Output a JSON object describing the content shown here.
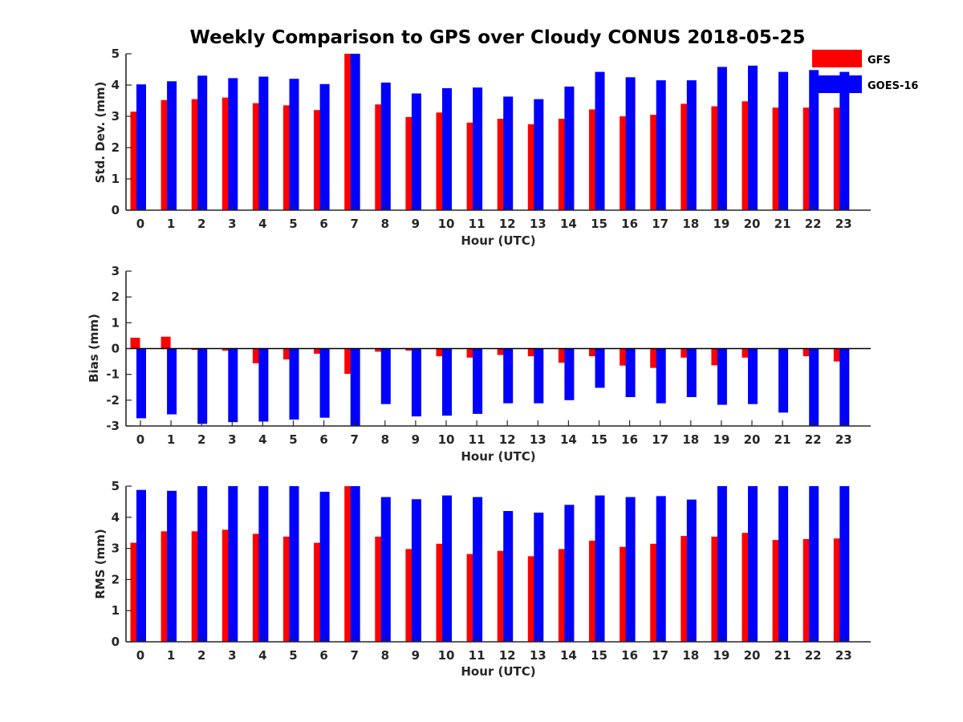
{
  "chart_data": [
    {
      "type": "bar",
      "title": "Weekly Comparison to GPS over Cloudy CONUS 2018-05-25",
      "xlabel": "Hour (UTC)",
      "ylabel": "Std. Dev. (mm)",
      "ylim": [
        0,
        5
      ],
      "yticks": [
        0,
        1,
        2,
        3,
        4,
        5
      ],
      "legend": "top-right",
      "categories": [
        "0",
        "1",
        "2",
        "3",
        "4",
        "5",
        "6",
        "7",
        "8",
        "9",
        "10",
        "11",
        "12",
        "13",
        "14",
        "15",
        "16",
        "17",
        "18",
        "19",
        "20",
        "21",
        "22",
        "23"
      ],
      "series": [
        {
          "name": "GFS",
          "color": "#ff0000",
          "values": [
            3.15,
            3.52,
            3.55,
            3.6,
            3.42,
            3.35,
            3.2,
            5.0,
            3.38,
            2.98,
            3.12,
            2.8,
            2.92,
            2.75,
            2.92,
            3.22,
            3.0,
            3.05,
            3.4,
            3.32,
            3.48,
            3.28,
            3.28,
            3.28
          ]
        },
        {
          "name": "GOES-16",
          "color": "#0000ff",
          "values": [
            4.02,
            4.12,
            4.3,
            4.22,
            4.27,
            4.2,
            4.03,
            5.0,
            4.08,
            3.73,
            3.9,
            3.92,
            3.63,
            3.55,
            3.95,
            4.42,
            4.25,
            4.15,
            4.15,
            4.58,
            4.62,
            4.42,
            4.48,
            4.42
          ]
        }
      ]
    },
    {
      "type": "bar",
      "title": "",
      "xlabel": "Hour (UTC)",
      "ylabel": "Bias (mm)",
      "ylim": [
        -3,
        3
      ],
      "yticks": [
        -3,
        -2,
        -1,
        0,
        1,
        2,
        3
      ],
      "zero_line": true,
      "categories": [
        "0",
        "1",
        "2",
        "3",
        "4",
        "5",
        "6",
        "7",
        "8",
        "9",
        "10",
        "11",
        "12",
        "13",
        "14",
        "15",
        "16",
        "17",
        "18",
        "19",
        "20",
        "21",
        "22",
        "23"
      ],
      "series": [
        {
          "name": "GFS",
          "color": "#ff0000",
          "values": [
            0.42,
            0.46,
            -0.05,
            -0.08,
            -0.57,
            -0.42,
            -0.2,
            -0.98,
            -0.12,
            -0.08,
            -0.3,
            -0.35,
            -0.25,
            -0.3,
            -0.55,
            -0.3,
            -0.66,
            -0.75,
            -0.35,
            -0.65,
            -0.35,
            -0.02,
            -0.3,
            -0.5
          ]
        },
        {
          "name": "GOES-16",
          "color": "#0000ff",
          "values": [
            -2.7,
            -2.55,
            -2.92,
            -2.85,
            -2.83,
            -2.75,
            -2.68,
            -3.0,
            -2.15,
            -2.63,
            -2.6,
            -2.53,
            -2.12,
            -2.12,
            -2.0,
            -1.52,
            -1.88,
            -2.12,
            -1.88,
            -2.18,
            -2.15,
            -2.48,
            -3.0,
            -3.0
          ]
        }
      ]
    },
    {
      "type": "bar",
      "title": "",
      "xlabel": "Hour (UTC)",
      "ylabel": "RMS (mm)",
      "ylim": [
        0,
        5
      ],
      "yticks": [
        0,
        1,
        2,
        3,
        4,
        5
      ],
      "categories": [
        "0",
        "1",
        "2",
        "3",
        "4",
        "5",
        "6",
        "7",
        "8",
        "9",
        "10",
        "11",
        "12",
        "13",
        "14",
        "15",
        "16",
        "17",
        "18",
        "19",
        "20",
        "21",
        "22",
        "23"
      ],
      "series": [
        {
          "name": "GFS",
          "color": "#ff0000",
          "values": [
            3.18,
            3.55,
            3.55,
            3.6,
            3.47,
            3.38,
            3.18,
            5.0,
            3.38,
            2.98,
            3.15,
            2.82,
            2.92,
            2.75,
            2.98,
            3.25,
            3.05,
            3.15,
            3.4,
            3.38,
            3.5,
            3.27,
            3.3,
            3.32
          ]
        },
        {
          "name": "GOES-16",
          "color": "#0000ff",
          "values": [
            4.88,
            4.85,
            5.0,
            5.0,
            5.0,
            5.0,
            4.82,
            5.0,
            4.65,
            4.58,
            4.7,
            4.65,
            4.2,
            4.15,
            4.4,
            4.7,
            4.65,
            4.68,
            4.57,
            5.0,
            5.0,
            5.0,
            5.0,
            5.0
          ]
        }
      ]
    }
  ]
}
